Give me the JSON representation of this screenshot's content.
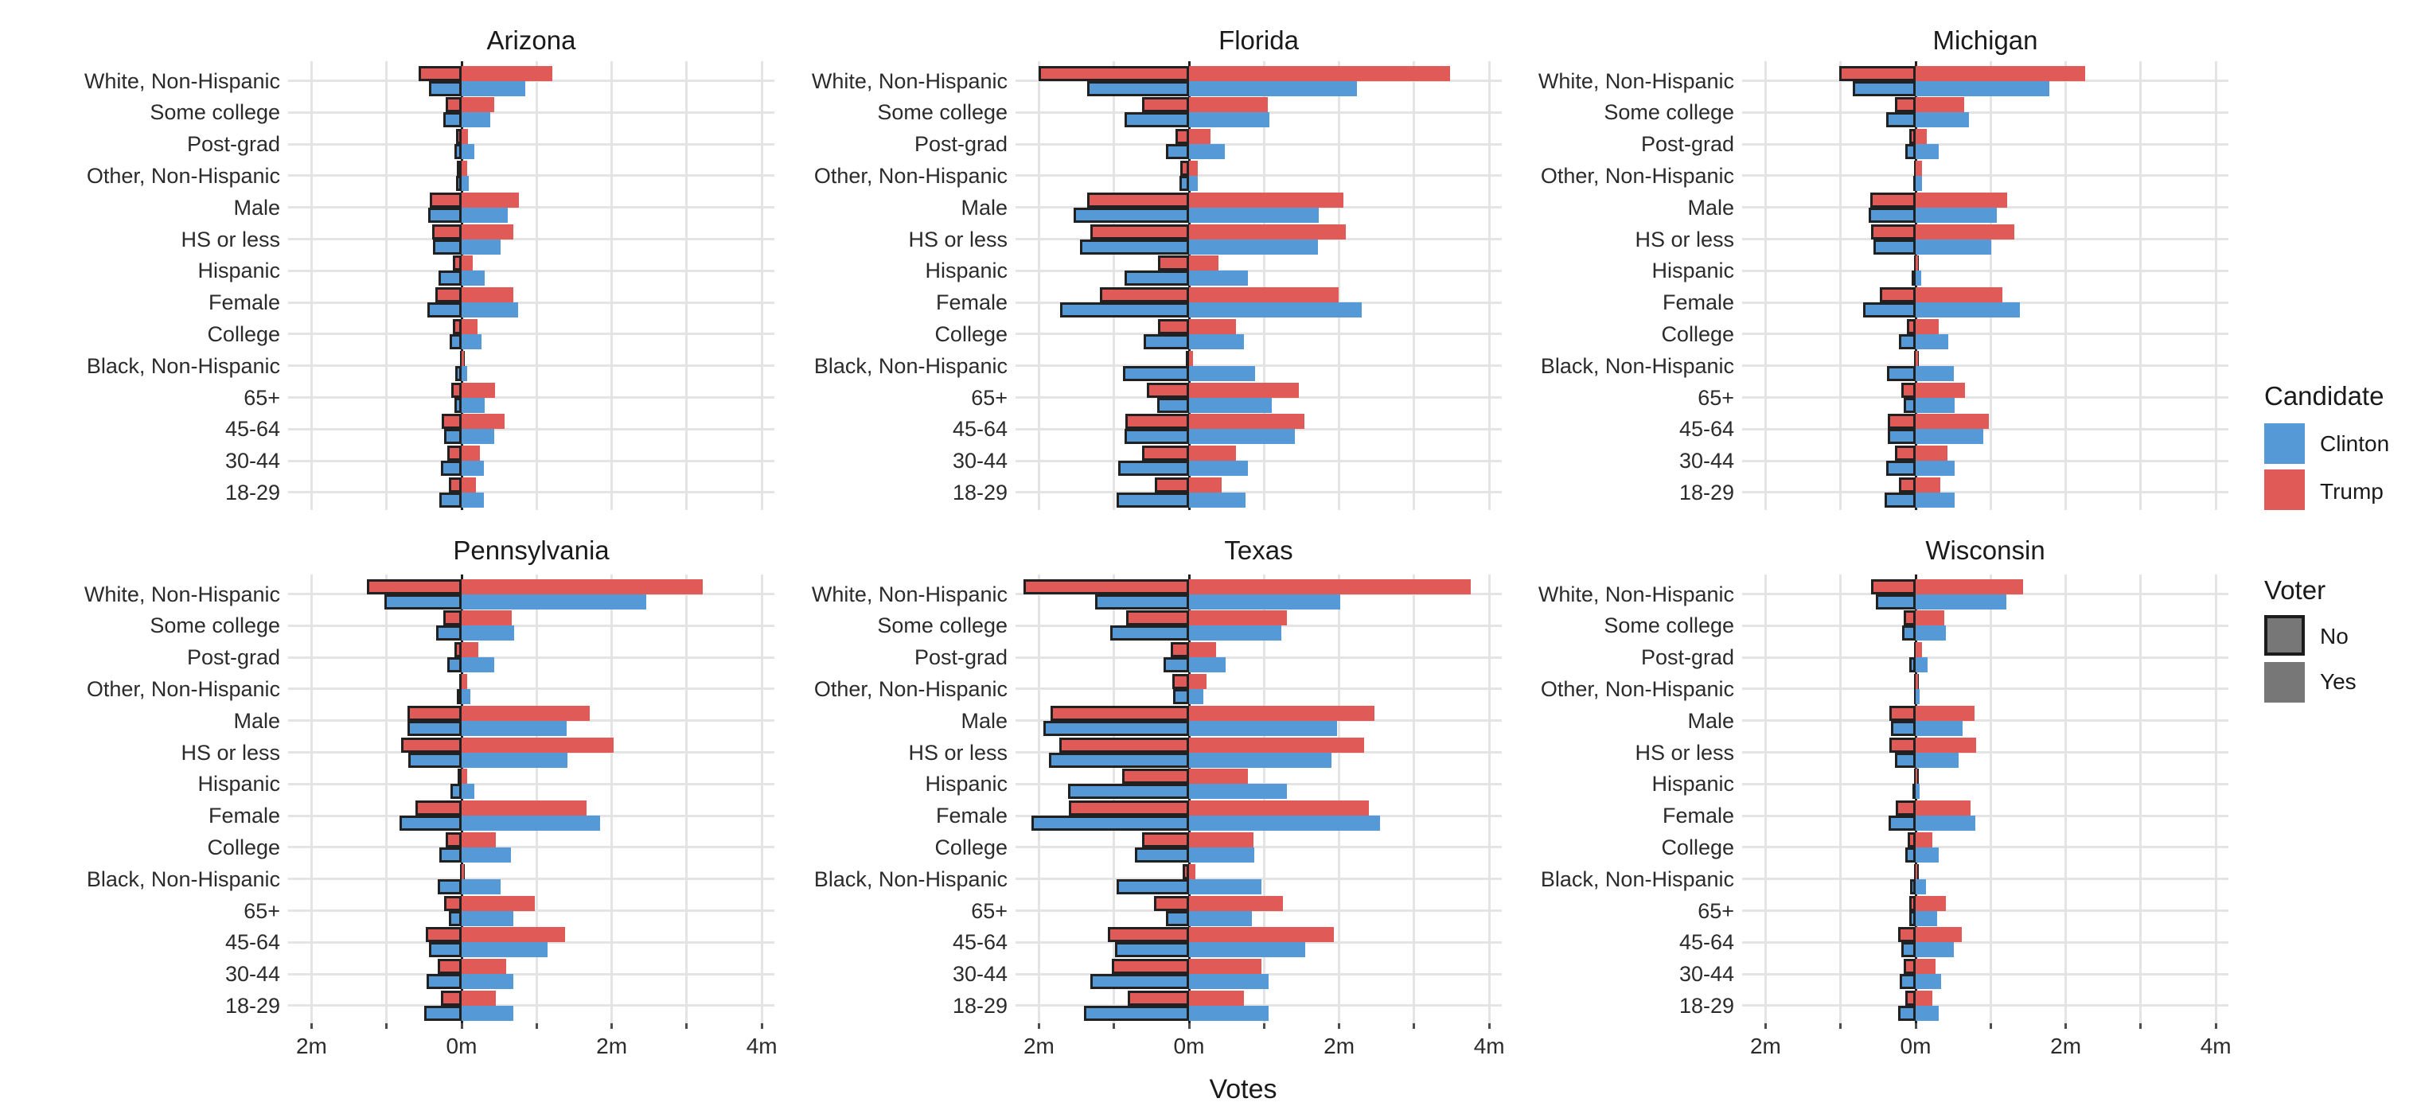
{
  "legend": {
    "candidate_title": "Candidate",
    "candidate_items": [
      {
        "label": "Clinton",
        "color": "#559AD6"
      },
      {
        "label": "Trump",
        "color": "#E05A57"
      }
    ],
    "voter_title": "Voter",
    "voter_items": [
      {
        "label": "No",
        "bordered": true,
        "fill": "#777777"
      },
      {
        "label": "Yes",
        "bordered": false,
        "fill": "#777777"
      }
    ]
  },
  "chart_data": {
    "type": "bar",
    "orientation": "horizontal-diverging",
    "title": "",
    "xlabel": "Votes",
    "units": "millions of votes",
    "x_tick_values": [
      -2,
      0,
      2,
      4
    ],
    "x_tick_labels": [
      "2m",
      "0m",
      "2m",
      "4m"
    ],
    "x_gridline_values": [
      -2,
      -1,
      0,
      1,
      2,
      3,
      4
    ],
    "xlim": [
      -2.31,
      4.17
    ],
    "grid": true,
    "legend_position": "right",
    "colors": {
      "clinton": "#559AD6",
      "trump": "#E05A57",
      "no_bar_border": "#212121",
      "gridline": "#e4e4e4",
      "zero_line": "#212121",
      "legend_gray": "#777777"
    },
    "facets": [
      "Arizona",
      "Florida",
      "Michigan",
      "Pennsylvania",
      "Texas",
      "Wisconsin"
    ],
    "categories": [
      "White, Non-Hispanic",
      "Some college",
      "Post-grad",
      "Other, Non-Hispanic",
      "Male",
      "HS or less",
      "Hispanic",
      "Female",
      "College",
      "Black, Non-Hispanic",
      "65+",
      "45-64",
      "30-44",
      "18-29"
    ],
    "value_columns": [
      "trump_no",
      "trump_yes",
      "clinton_no",
      "clinton_yes"
    ],
    "note": "Values in millions of votes; *_no bars extend left of zero (non-voters, black outline), *_yes bars extend right (voters). Trump bar drawn above Clinton bar in each category.",
    "states": [
      {
        "name": "Arizona",
        "values": [
          [
            0.57,
            1.21,
            0.44,
            0.85
          ],
          [
            0.21,
            0.43,
            0.24,
            0.38
          ],
          [
            0.07,
            0.09,
            0.1,
            0.17
          ],
          [
            0.06,
            0.07,
            0.07,
            0.1
          ],
          [
            0.42,
            0.76,
            0.45,
            0.62
          ],
          [
            0.39,
            0.69,
            0.38,
            0.52
          ],
          [
            0.12,
            0.15,
            0.31,
            0.31
          ],
          [
            0.35,
            0.69,
            0.46,
            0.75
          ],
          [
            0.12,
            0.21,
            0.16,
            0.26
          ],
          [
            0.02,
            0.03,
            0.08,
            0.07
          ],
          [
            0.14,
            0.45,
            0.1,
            0.31
          ],
          [
            0.26,
            0.57,
            0.23,
            0.44
          ],
          [
            0.19,
            0.24,
            0.28,
            0.3
          ],
          [
            0.17,
            0.19,
            0.3,
            0.3
          ]
        ]
      },
      {
        "name": "Florida",
        "values": [
          [
            2.0,
            3.48,
            1.36,
            2.24
          ],
          [
            0.63,
            1.05,
            0.86,
            1.07
          ],
          [
            0.18,
            0.29,
            0.31,
            0.48
          ],
          [
            0.12,
            0.12,
            0.13,
            0.12
          ],
          [
            1.36,
            2.06,
            1.54,
            1.73
          ],
          [
            1.31,
            2.09,
            1.45,
            1.72
          ],
          [
            0.41,
            0.39,
            0.86,
            0.78
          ],
          [
            1.19,
            1.99,
            1.72,
            2.3
          ],
          [
            0.41,
            0.63,
            0.6,
            0.73
          ],
          [
            0.04,
            0.05,
            0.88,
            0.88
          ],
          [
            0.56,
            1.46,
            0.42,
            1.1
          ],
          [
            0.85,
            1.54,
            0.86,
            1.41
          ],
          [
            0.63,
            0.63,
            0.94,
            0.78
          ],
          [
            0.46,
            0.44,
            0.97,
            0.75
          ]
        ]
      },
      {
        "name": "Michigan",
        "values": [
          [
            1.02,
            2.26,
            0.84,
            1.78
          ],
          [
            0.28,
            0.65,
            0.39,
            0.71
          ],
          [
            0.09,
            0.15,
            0.14,
            0.31
          ],
          [
            0.02,
            0.08,
            0.03,
            0.08
          ],
          [
            0.6,
            1.22,
            0.63,
            1.08
          ],
          [
            0.59,
            1.31,
            0.56,
            1.01
          ],
          [
            0.01,
            0.03,
            0.05,
            0.07
          ],
          [
            0.48,
            1.16,
            0.7,
            1.39
          ],
          [
            0.12,
            0.31,
            0.22,
            0.44
          ],
          [
            0.01,
            0.03,
            0.38,
            0.51
          ],
          [
            0.19,
            0.66,
            0.16,
            0.52
          ],
          [
            0.37,
            0.98,
            0.37,
            0.9
          ],
          [
            0.28,
            0.42,
            0.39,
            0.52
          ],
          [
            0.22,
            0.33,
            0.41,
            0.52
          ]
        ]
      },
      {
        "name": "Pennsylvania",
        "values": [
          [
            1.26,
            3.21,
            1.03,
            2.46
          ],
          [
            0.24,
            0.67,
            0.34,
            0.7
          ],
          [
            0.1,
            0.22,
            0.19,
            0.43
          ],
          [
            0.03,
            0.07,
            0.06,
            0.12
          ],
          [
            0.72,
            1.71,
            0.72,
            1.4
          ],
          [
            0.81,
            2.03,
            0.71,
            1.41
          ],
          [
            0.05,
            0.07,
            0.15,
            0.17
          ],
          [
            0.62,
            1.67,
            0.83,
            1.84
          ],
          [
            0.21,
            0.46,
            0.3,
            0.66
          ],
          [
            0.01,
            0.03,
            0.32,
            0.52
          ],
          [
            0.23,
            0.98,
            0.17,
            0.69
          ],
          [
            0.48,
            1.38,
            0.43,
            1.15
          ],
          [
            0.32,
            0.59,
            0.47,
            0.69
          ],
          [
            0.28,
            0.46,
            0.5,
            0.69
          ]
        ]
      },
      {
        "name": "Texas",
        "values": [
          [
            2.21,
            3.75,
            1.25,
            2.02
          ],
          [
            0.84,
            1.3,
            1.05,
            1.23
          ],
          [
            0.24,
            0.36,
            0.34,
            0.49
          ],
          [
            0.22,
            0.23,
            0.21,
            0.19
          ],
          [
            1.84,
            2.47,
            1.94,
            1.97
          ],
          [
            1.73,
            2.33,
            1.87,
            1.9
          ],
          [
            0.89,
            0.79,
            1.61,
            1.3
          ],
          [
            1.6,
            2.4,
            2.1,
            2.55
          ],
          [
            0.63,
            0.86,
            0.72,
            0.87
          ],
          [
            0.09,
            0.09,
            0.96,
            0.96
          ],
          [
            0.47,
            1.25,
            0.31,
            0.84
          ],
          [
            1.08,
            1.93,
            0.99,
            1.55
          ],
          [
            1.03,
            0.97,
            1.32,
            1.06
          ],
          [
            0.82,
            0.73,
            1.4,
            1.06
          ]
        ]
      },
      {
        "name": "Wisconsin",
        "values": [
          [
            0.59,
            1.43,
            0.53,
            1.21
          ],
          [
            0.16,
            0.38,
            0.18,
            0.4
          ],
          [
            0.02,
            0.08,
            0.09,
            0.16
          ],
          [
            0.01,
            0.03,
            0.02,
            0.05
          ],
          [
            0.35,
            0.78,
            0.33,
            0.63
          ],
          [
            0.35,
            0.81,
            0.28,
            0.57
          ],
          [
            0.01,
            0.02,
            0.04,
            0.05
          ],
          [
            0.27,
            0.73,
            0.36,
            0.8
          ],
          [
            0.11,
            0.22,
            0.14,
            0.31
          ],
          [
            0.01,
            0.01,
            0.07,
            0.14
          ],
          [
            0.09,
            0.4,
            0.08,
            0.29
          ],
          [
            0.23,
            0.62,
            0.19,
            0.51
          ],
          [
            0.16,
            0.27,
            0.21,
            0.34
          ],
          [
            0.14,
            0.22,
            0.23,
            0.31
          ]
        ]
      }
    ]
  }
}
